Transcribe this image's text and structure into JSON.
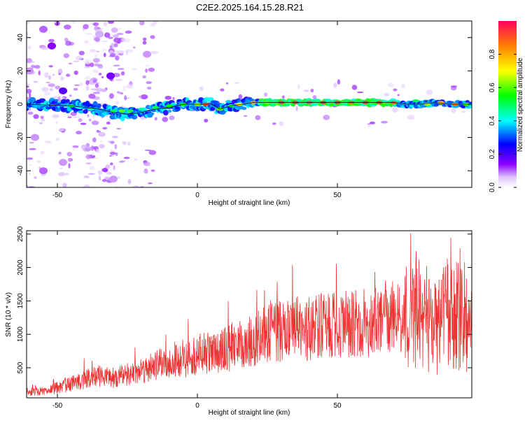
{
  "title": "C2E2.2025.164.15.28.R21",
  "colorbar": {
    "label": "Normalized spectral amplitude",
    "ticks": [
      0.0,
      0.2,
      0.4,
      0.6,
      0.8
    ],
    "tick_labels": [
      "0.0",
      "0.2",
      "0.4",
      "0.6",
      "0.8"
    ],
    "stops": [
      {
        "v": 0.0,
        "color": "#ffffff"
      },
      {
        "v": 0.06,
        "color": "#e0c8ff"
      },
      {
        "v": 0.14,
        "color": "#8a00ff"
      },
      {
        "v": 0.26,
        "color": "#0000ff"
      },
      {
        "v": 0.4,
        "color": "#00ffff"
      },
      {
        "v": 0.55,
        "color": "#00ff00"
      },
      {
        "v": 0.7,
        "color": "#ffff00"
      },
      {
        "v": 0.85,
        "color": "#ff8000"
      },
      {
        "v": 1.0,
        "color": "#ff0060"
      }
    ]
  },
  "chart_data": [
    {
      "type": "heatmap",
      "title": "C2E2.2025.164.15.28.R21",
      "xlabel": "Height of straight line (km)",
      "ylabel": "Frequency (Hz)",
      "xlim": [
        -61,
        98
      ],
      "ylim": [
        -50,
        50
      ],
      "xticks": [
        -50,
        0,
        50
      ],
      "yticks": [
        -40,
        -20,
        0,
        20,
        40
      ],
      "track": [
        [
          -61,
          0
        ],
        [
          -45,
          -1
        ],
        [
          -35,
          -3
        ],
        [
          -30,
          -5
        ],
        [
          -25,
          -6
        ],
        [
          -20,
          -5
        ],
        [
          -15,
          -3
        ],
        [
          -10,
          -2
        ],
        [
          -5,
          0
        ],
        [
          0,
          0
        ],
        [
          5,
          0
        ],
        [
          8,
          -3
        ],
        [
          12,
          -1
        ],
        [
          20,
          1
        ],
        [
          30,
          1
        ],
        [
          50,
          1
        ],
        [
          60,
          1
        ],
        [
          70,
          1
        ],
        [
          75,
          0
        ],
        [
          80,
          0
        ],
        [
          85,
          1
        ],
        [
          90,
          0
        ],
        [
          98,
          0
        ]
      ],
      "blobs": [
        {
          "x": -55,
          "y": 0,
          "v": 0.4
        },
        {
          "x": -50,
          "y": 0,
          "v": 0.3
        },
        {
          "x": -45,
          "y": -1,
          "v": 0.5
        },
        {
          "x": -42,
          "y": -2,
          "v": 0.4
        },
        {
          "x": -38,
          "y": -3,
          "v": 0.45
        },
        {
          "x": -35,
          "y": -4,
          "v": 0.35
        },
        {
          "x": -30,
          "y": -4,
          "v": 0.5
        },
        {
          "x": -27,
          "y": -4,
          "v": 0.6
        },
        {
          "x": -24,
          "y": -4,
          "v": 0.5
        },
        {
          "x": -20,
          "y": -3,
          "v": 0.45
        },
        {
          "x": -15,
          "y": -2,
          "v": 0.5
        },
        {
          "x": -10,
          "y": -1,
          "v": 0.55
        },
        {
          "x": -5,
          "y": 0,
          "v": 0.55
        },
        {
          "x": 0,
          "y": 0,
          "v": 0.65
        },
        {
          "x": 3,
          "y": 0,
          "v": 0.9
        },
        {
          "x": 8,
          "y": -3,
          "v": 0.6
        },
        {
          "x": 12,
          "y": -1,
          "v": 0.5
        },
        {
          "x": 15,
          "y": 0,
          "v": 0.7
        },
        {
          "x": 20,
          "y": 1,
          "v": 0.8
        },
        {
          "x": 25,
          "y": 1,
          "v": 0.6
        },
        {
          "x": 30,
          "y": 1,
          "v": 0.95
        },
        {
          "x": 35,
          "y": 1,
          "v": 0.95
        },
        {
          "x": 40,
          "y": 1,
          "v": 0.9
        },
        {
          "x": 45,
          "y": 1,
          "v": 0.95
        },
        {
          "x": 50,
          "y": 1,
          "v": 0.95
        },
        {
          "x": 55,
          "y": 1,
          "v": 0.9
        },
        {
          "x": 60,
          "y": 1,
          "v": 0.95
        },
        {
          "x": 65,
          "y": 1,
          "v": 0.95
        },
        {
          "x": 70,
          "y": 1,
          "v": 0.9
        },
        {
          "x": 78,
          "y": 2,
          "v": 0.5
        },
        {
          "x": 82,
          "y": 0,
          "v": 0.65
        },
        {
          "x": 87,
          "y": 1,
          "v": 0.8
        },
        {
          "x": 92,
          "y": 0,
          "v": 0.85
        },
        {
          "x": 96,
          "y": 0,
          "v": 0.6
        },
        {
          "x": -52,
          "y": 35,
          "v": 0.14
        },
        {
          "x": -48,
          "y": 8,
          "v": 0.18
        },
        {
          "x": -55,
          "y": 45,
          "v": 0.1
        },
        {
          "x": -55,
          "y": -40,
          "v": 0.1
        },
        {
          "x": -48,
          "y": -35,
          "v": 0.08
        },
        {
          "x": -31,
          "y": 17,
          "v": 0.16
        },
        {
          "x": -18,
          "y": 30,
          "v": 0.08
        },
        {
          "x": -30,
          "y": -45,
          "v": 0.08
        },
        {
          "x": -35,
          "y": 42,
          "v": 0.07
        },
        {
          "x": -60,
          "y": 20,
          "v": 0.08
        },
        {
          "x": -58,
          "y": -20,
          "v": 0.08
        }
      ]
    },
    {
      "type": "line",
      "xlabel": "Height of straight line (km)",
      "ylabel": "SNR (10 * v/v)",
      "xlim": [
        -61,
        98
      ],
      "ylim": [
        50,
        2550
      ],
      "xticks": [
        -50,
        0,
        50
      ],
      "yticks": [
        500,
        1000,
        1500,
        2000,
        2500
      ],
      "color": "#ee3333",
      "series": [
        {
          "x": [
            -61,
            -55,
            -50,
            -45,
            -40,
            -35,
            -30,
            -25,
            -20,
            -15,
            -10,
            -5,
            0,
            5,
            10,
            15,
            20,
            25,
            30,
            35,
            40,
            45,
            50,
            55,
            60,
            65,
            70,
            75,
            80,
            85,
            90,
            95,
            98
          ],
          "values": [
            150,
            140,
            200,
            260,
            330,
            380,
            350,
            400,
            470,
            520,
            600,
            640,
            700,
            720,
            780,
            850,
            910,
            1000,
            1050,
            1080,
            1100,
            1120,
            1140,
            1160,
            1180,
            1200,
            1220,
            1250,
            1300,
            1100,
            1350,
            1200,
            1000
          ]
        }
      ]
    }
  ]
}
